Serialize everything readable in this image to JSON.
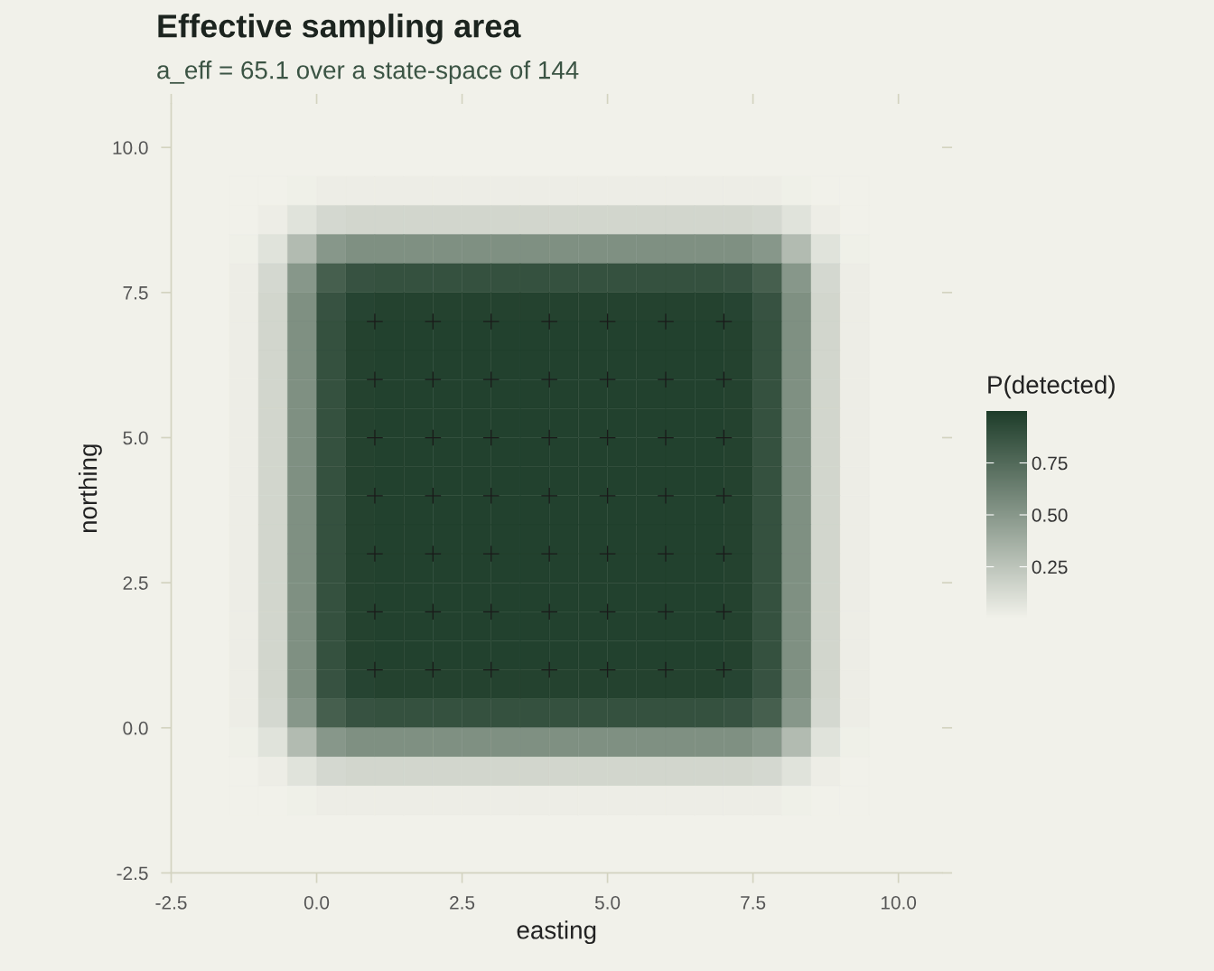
{
  "chart_data": {
    "type": "heatmap",
    "title": "Effective sampling area",
    "subtitle": "a_eff = 65.1 over a state-space of 144",
    "xlabel": "easting",
    "ylabel": "northing",
    "clabel": "P(detected)",
    "x": [
      -1.25,
      -0.75,
      -0.25,
      0.25,
      0.75,
      1.25,
      1.75,
      2.25,
      2.75,
      3.25,
      3.75,
      4.25,
      4.75,
      5.25,
      5.75,
      6.25,
      6.75,
      7.25,
      7.75,
      8.25,
      8.75,
      9.25
    ],
    "y": [
      9.25,
      8.75,
      8.25,
      7.75,
      7.25,
      6.75,
      6.25,
      5.75,
      5.25,
      4.75,
      4.25,
      3.75,
      3.25,
      2.75,
      2.25,
      1.75,
      1.25,
      0.75,
      0.25,
      -0.25,
      -0.75,
      -1.25
    ],
    "cells": [
      [
        0.0,
        0.0,
        0.01,
        0.02,
        0.02,
        0.02,
        0.02,
        0.02,
        0.02,
        0.02,
        0.02,
        0.02,
        0.02,
        0.02,
        0.02,
        0.02,
        0.02,
        0.02,
        0.02,
        0.01,
        0.0,
        0.0
      ],
      [
        0.0,
        0.02,
        0.08,
        0.14,
        0.15,
        0.15,
        0.15,
        0.15,
        0.15,
        0.15,
        0.15,
        0.15,
        0.15,
        0.15,
        0.15,
        0.15,
        0.15,
        0.15,
        0.14,
        0.08,
        0.02,
        0.0
      ],
      [
        0.01,
        0.08,
        0.3,
        0.5,
        0.54,
        0.54,
        0.54,
        0.54,
        0.54,
        0.54,
        0.54,
        0.54,
        0.54,
        0.54,
        0.54,
        0.54,
        0.54,
        0.54,
        0.5,
        0.3,
        0.08,
        0.01
      ],
      [
        0.02,
        0.14,
        0.5,
        0.81,
        0.88,
        0.89,
        0.89,
        0.89,
        0.89,
        0.89,
        0.89,
        0.89,
        0.89,
        0.89,
        0.89,
        0.89,
        0.89,
        0.88,
        0.81,
        0.5,
        0.14,
        0.02
      ],
      [
        0.02,
        0.15,
        0.54,
        0.88,
        0.96,
        0.97,
        0.97,
        0.97,
        0.97,
        0.97,
        0.97,
        0.97,
        0.97,
        0.97,
        0.97,
        0.97,
        0.97,
        0.96,
        0.88,
        0.54,
        0.15,
        0.02
      ],
      [
        0.02,
        0.15,
        0.54,
        0.89,
        0.97,
        0.98,
        0.98,
        0.98,
        0.98,
        0.98,
        0.98,
        0.98,
        0.98,
        0.98,
        0.98,
        0.98,
        0.98,
        0.97,
        0.89,
        0.54,
        0.15,
        0.02
      ],
      [
        0.02,
        0.15,
        0.54,
        0.89,
        0.97,
        0.98,
        0.98,
        0.98,
        0.98,
        0.98,
        0.98,
        0.98,
        0.98,
        0.98,
        0.98,
        0.98,
        0.98,
        0.97,
        0.89,
        0.54,
        0.15,
        0.02
      ],
      [
        0.02,
        0.15,
        0.54,
        0.89,
        0.97,
        0.98,
        0.98,
        0.98,
        0.98,
        0.98,
        0.98,
        0.98,
        0.98,
        0.98,
        0.98,
        0.98,
        0.98,
        0.97,
        0.89,
        0.54,
        0.15,
        0.02
      ],
      [
        0.02,
        0.15,
        0.54,
        0.89,
        0.97,
        0.98,
        0.98,
        0.98,
        0.98,
        0.98,
        0.98,
        0.98,
        0.98,
        0.98,
        0.98,
        0.98,
        0.98,
        0.97,
        0.89,
        0.54,
        0.15,
        0.02
      ],
      [
        0.02,
        0.15,
        0.54,
        0.89,
        0.97,
        0.98,
        0.98,
        0.98,
        0.98,
        0.98,
        0.98,
        0.98,
        0.98,
        0.98,
        0.98,
        0.98,
        0.98,
        0.97,
        0.89,
        0.54,
        0.15,
        0.02
      ],
      [
        0.02,
        0.15,
        0.54,
        0.89,
        0.97,
        0.98,
        0.98,
        0.98,
        0.98,
        0.98,
        0.98,
        0.98,
        0.98,
        0.98,
        0.98,
        0.98,
        0.98,
        0.97,
        0.89,
        0.54,
        0.15,
        0.02
      ],
      [
        0.02,
        0.15,
        0.54,
        0.89,
        0.97,
        0.98,
        0.98,
        0.98,
        0.98,
        0.98,
        0.98,
        0.98,
        0.98,
        0.98,
        0.98,
        0.98,
        0.98,
        0.97,
        0.89,
        0.54,
        0.15,
        0.02
      ],
      [
        0.02,
        0.15,
        0.54,
        0.89,
        0.97,
        0.98,
        0.98,
        0.98,
        0.98,
        0.98,
        0.98,
        0.98,
        0.98,
        0.98,
        0.98,
        0.98,
        0.98,
        0.97,
        0.89,
        0.54,
        0.15,
        0.02
      ],
      [
        0.02,
        0.15,
        0.54,
        0.89,
        0.97,
        0.98,
        0.98,
        0.98,
        0.98,
        0.98,
        0.98,
        0.98,
        0.98,
        0.98,
        0.98,
        0.98,
        0.98,
        0.97,
        0.89,
        0.54,
        0.15,
        0.02
      ],
      [
        0.02,
        0.15,
        0.54,
        0.89,
        0.97,
        0.98,
        0.98,
        0.98,
        0.98,
        0.98,
        0.98,
        0.98,
        0.98,
        0.98,
        0.98,
        0.98,
        0.98,
        0.97,
        0.89,
        0.54,
        0.15,
        0.02
      ],
      [
        0.02,
        0.15,
        0.54,
        0.89,
        0.97,
        0.98,
        0.98,
        0.98,
        0.98,
        0.98,
        0.98,
        0.98,
        0.98,
        0.98,
        0.98,
        0.98,
        0.98,
        0.97,
        0.89,
        0.54,
        0.15,
        0.02
      ],
      [
        0.02,
        0.15,
        0.54,
        0.89,
        0.97,
        0.98,
        0.98,
        0.98,
        0.98,
        0.98,
        0.98,
        0.98,
        0.98,
        0.98,
        0.98,
        0.98,
        0.98,
        0.97,
        0.89,
        0.54,
        0.15,
        0.02
      ],
      [
        0.02,
        0.15,
        0.54,
        0.88,
        0.96,
        0.97,
        0.97,
        0.97,
        0.97,
        0.97,
        0.97,
        0.97,
        0.97,
        0.97,
        0.97,
        0.97,
        0.97,
        0.96,
        0.88,
        0.54,
        0.15,
        0.02
      ],
      [
        0.02,
        0.14,
        0.5,
        0.81,
        0.88,
        0.89,
        0.89,
        0.89,
        0.89,
        0.89,
        0.89,
        0.89,
        0.89,
        0.89,
        0.89,
        0.89,
        0.89,
        0.88,
        0.81,
        0.5,
        0.14,
        0.02
      ],
      [
        0.01,
        0.08,
        0.3,
        0.5,
        0.54,
        0.54,
        0.54,
        0.54,
        0.54,
        0.54,
        0.54,
        0.54,
        0.54,
        0.54,
        0.54,
        0.54,
        0.54,
        0.54,
        0.5,
        0.3,
        0.08,
        0.01
      ],
      [
        0.0,
        0.02,
        0.08,
        0.14,
        0.15,
        0.15,
        0.15,
        0.15,
        0.15,
        0.15,
        0.15,
        0.15,
        0.15,
        0.15,
        0.15,
        0.15,
        0.15,
        0.15,
        0.14,
        0.08,
        0.02,
        0.0
      ],
      [
        0.0,
        0.0,
        0.01,
        0.02,
        0.02,
        0.02,
        0.02,
        0.02,
        0.02,
        0.02,
        0.02,
        0.02,
        0.02,
        0.02,
        0.02,
        0.02,
        0.02,
        0.02,
        0.02,
        0.01,
        0.0,
        0.0
      ]
    ],
    "colors": [
      "#f1f1ea",
      "#1e3d2a"
    ],
    "clim": [
      0,
      1
    ],
    "cticks": [
      {
        "value": 0.25,
        "label": "0.25"
      },
      {
        "value": 0.5,
        "label": "0.50"
      },
      {
        "value": 0.75,
        "label": "0.75"
      }
    ],
    "series": [
      {
        "type": "scatter",
        "color": "#1a1a1a",
        "marker": "cross",
        "x": [
          1,
          2,
          3,
          4,
          5,
          6,
          7,
          1,
          2,
          3,
          4,
          5,
          6,
          7,
          1,
          2,
          3,
          4,
          5,
          6,
          7,
          1,
          2,
          3,
          4,
          5,
          6,
          7,
          1,
          2,
          3,
          4,
          5,
          6,
          7,
          1,
          2,
          3,
          4,
          5,
          6,
          7,
          1,
          2,
          3,
          4,
          5,
          6,
          7
        ],
        "values": [
          1,
          1,
          1,
          1,
          1,
          1,
          1,
          2,
          2,
          2,
          2,
          2,
          2,
          2,
          3,
          3,
          3,
          3,
          3,
          3,
          3,
          4,
          4,
          4,
          4,
          4,
          4,
          4,
          5,
          5,
          5,
          5,
          5,
          5,
          5,
          6,
          6,
          6,
          6,
          6,
          6,
          6,
          7,
          7,
          7,
          7,
          7,
          7,
          7
        ]
      }
    ],
    "xlim": [
      -2.5,
      10.75
    ],
    "ylim": [
      -2.5,
      10.75
    ],
    "xticks": [
      {
        "value": -2.5,
        "label": "-2.5"
      },
      {
        "value": 0,
        "label": "0.0"
      },
      2.5,
      {
        "value": 5,
        "label": "5.0"
      },
      7.5,
      {
        "value": 10,
        "label": "10.0"
      }
    ],
    "yticks": [
      {
        "value": -2.5,
        "label": "-2.5"
      },
      {
        "value": 0,
        "label": "0.0"
      },
      2.5,
      {
        "value": 5,
        "label": "5.0"
      },
      7.5,
      {
        "value": 10,
        "label": "10.0"
      }
    ],
    "grid": false,
    "legend": false
  }
}
